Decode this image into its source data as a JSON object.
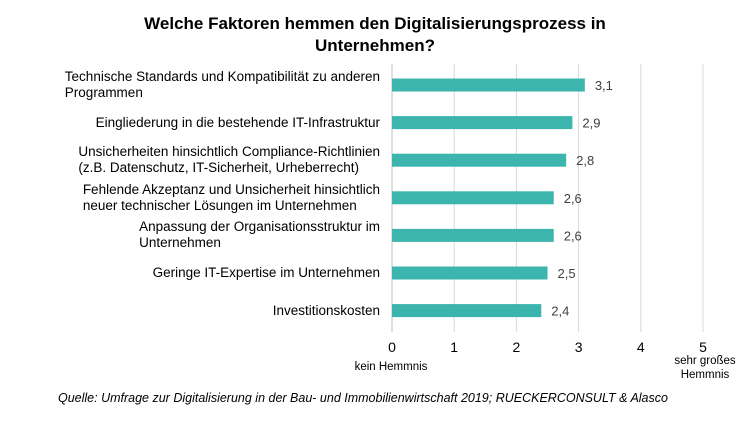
{
  "chart_data": {
    "type": "bar",
    "orientation": "horizontal",
    "title": "Welche Faktoren hemmen den Digitalisierungsprozess in Unternehmen?",
    "title_lines": [
      "Welche Faktoren hemmen den Digitalisierungsprozess in",
      "Unternehmen?"
    ],
    "categories": [
      [
        "Technische Standards und Kompatibilität zu anderen",
        "Programmen"
      ],
      [
        "Eingliederung in die bestehende IT-Infrastruktur"
      ],
      [
        "Unsicherheiten hinsichtlich Compliance-Richtlinien",
        "(z.B. Datenschutz, IT-Sicherheit, Urheberrecht)"
      ],
      [
        "Fehlende Akzeptanz und Unsicherheit hinsichtlich",
        "neuer technischer Lösungen im Unternehmen"
      ],
      [
        "Anpassung der Organisationsstruktur im",
        "Unternehmen"
      ],
      [
        "Geringe IT-Expertise im Unternehmen"
      ],
      [
        "Investitionskosten"
      ]
    ],
    "values": [
      3.1,
      2.9,
      2.8,
      2.6,
      2.6,
      2.5,
      2.4
    ],
    "value_labels": [
      "3,1",
      "2,9",
      "2,8",
      "2,6",
      "2,6",
      "2,5",
      "2,4"
    ],
    "xlim": [
      0,
      5
    ],
    "xticks": [
      "0",
      "1",
      "2",
      "3",
      "4",
      "5"
    ],
    "x_min_label": "kein Hemmnis",
    "x_max_label": [
      "sehr großes",
      "Hemmnis"
    ],
    "bar_color": "#3bb5ad",
    "grid": true,
    "source": "Quelle: Umfrage zur Digitalisierung in der Bau- und Immobilienwirtschaft 2019; RUECKERCONSULT & Alasco"
  }
}
